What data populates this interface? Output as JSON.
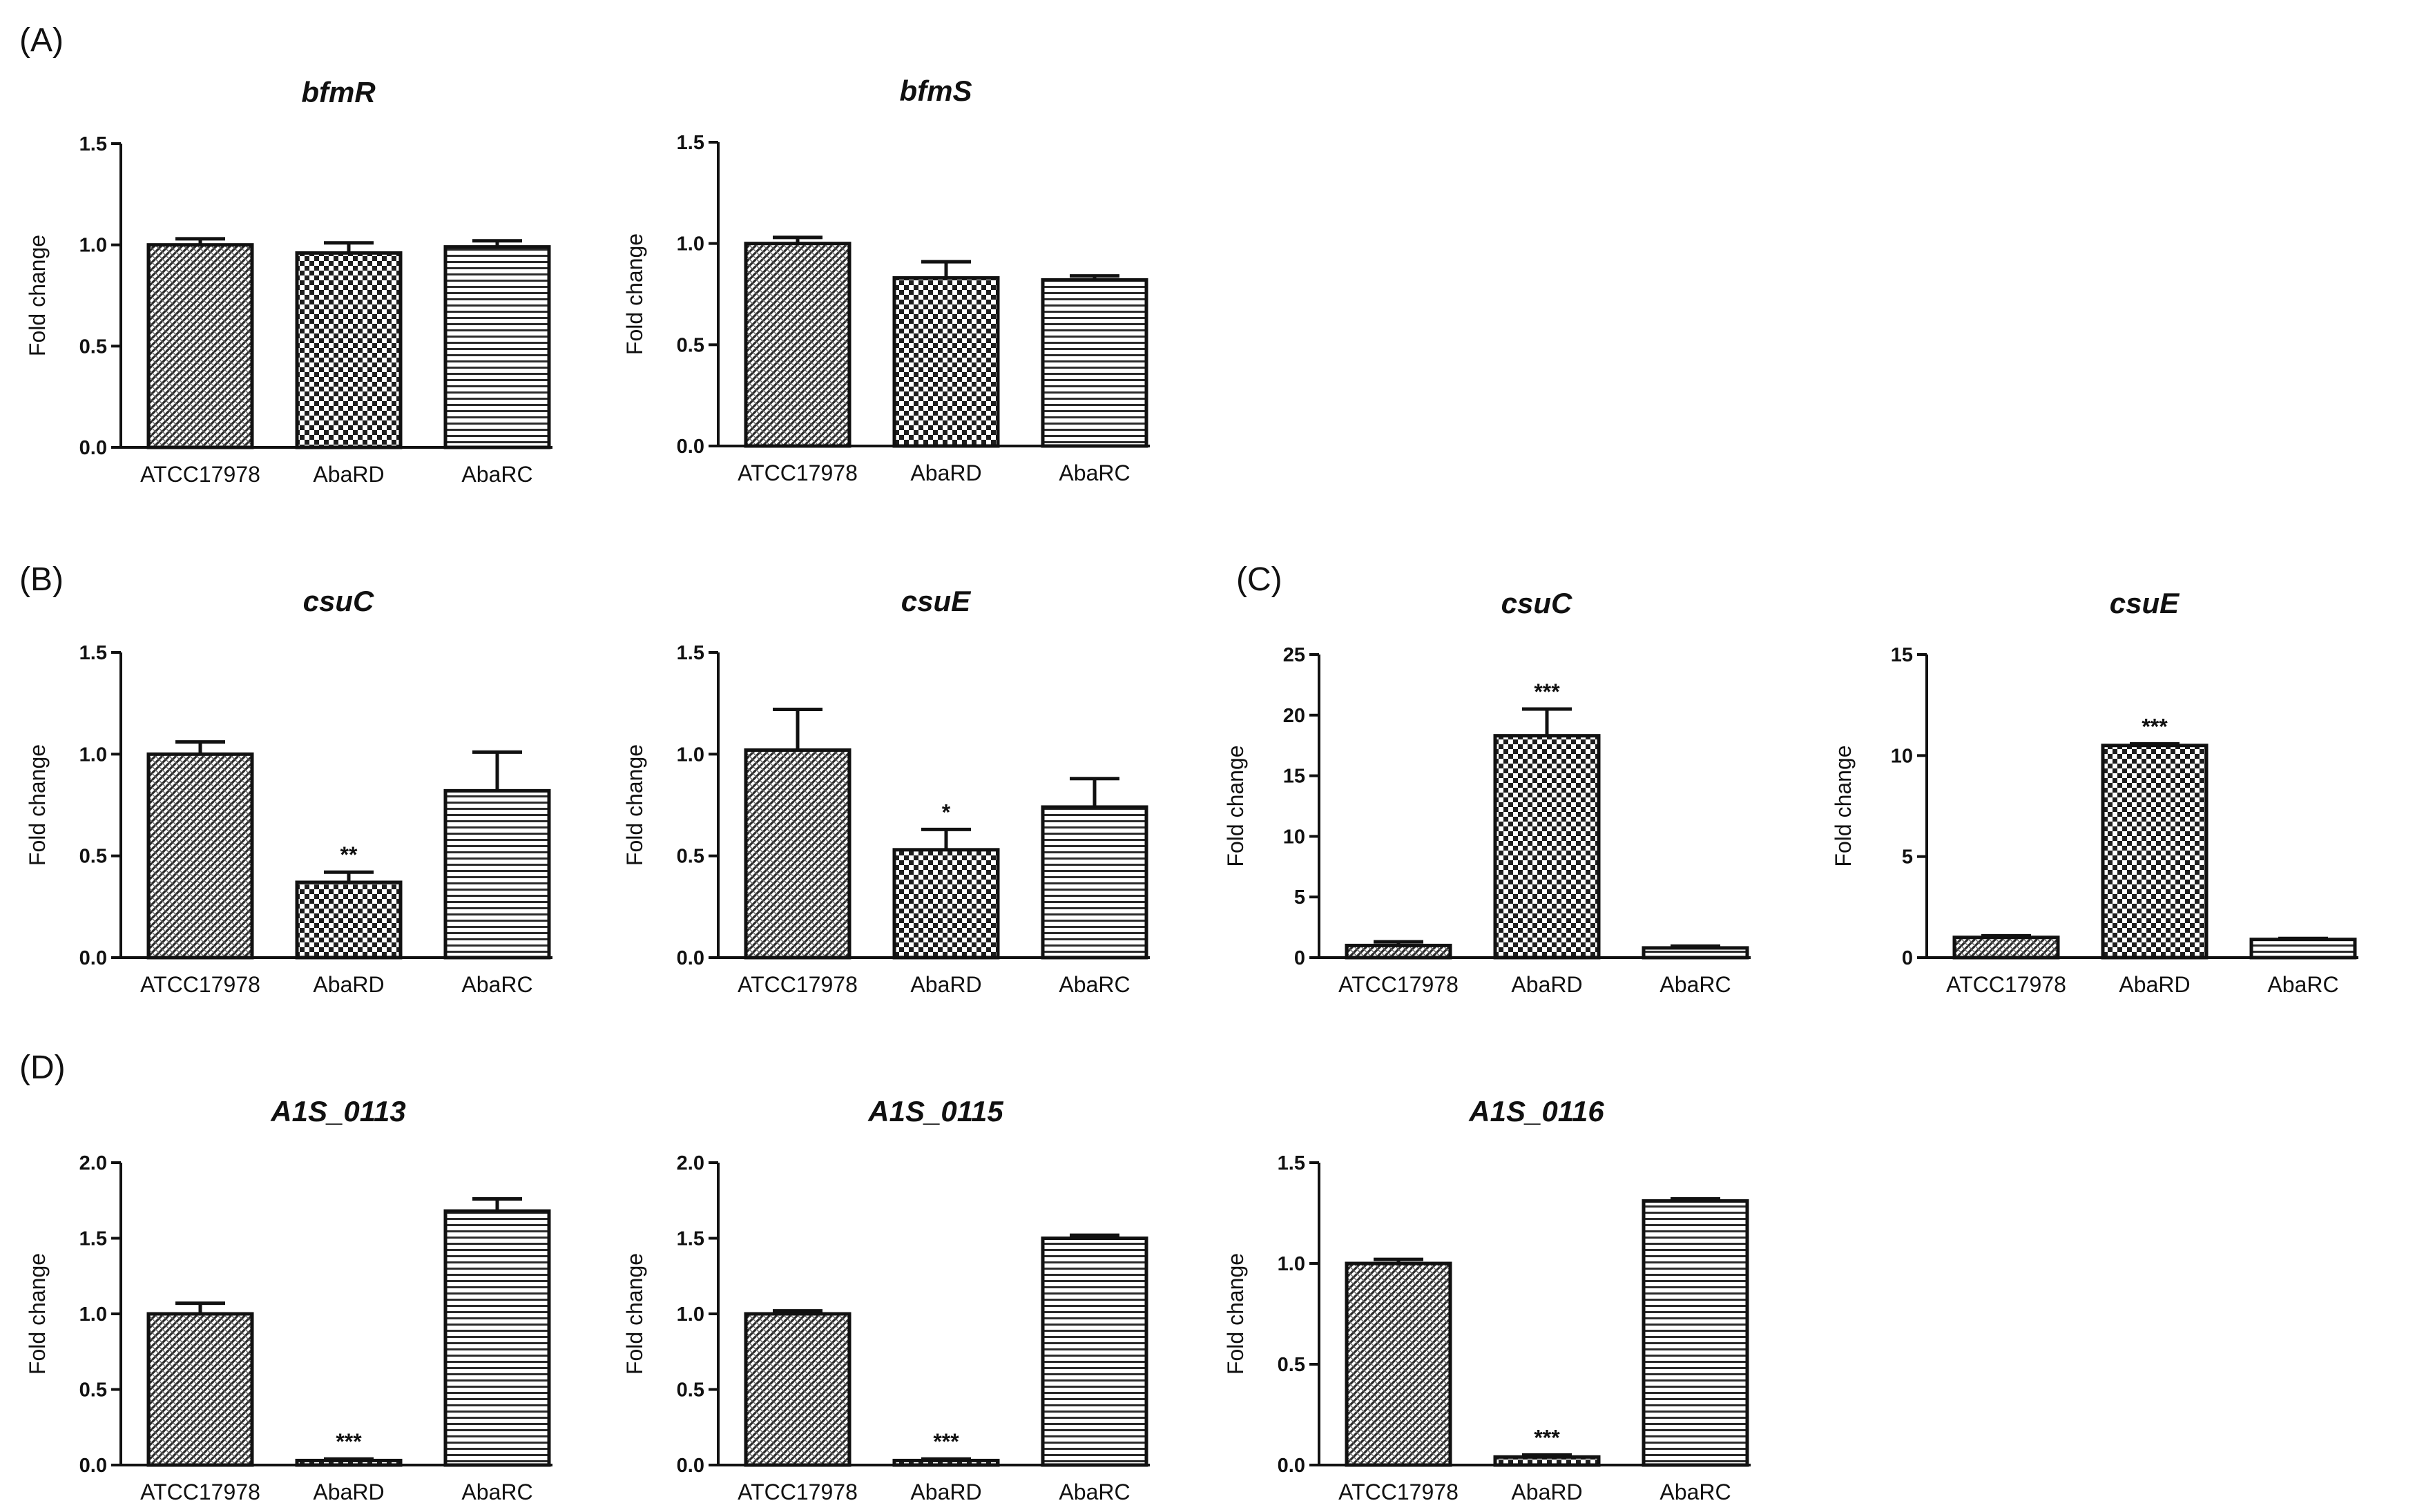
{
  "panel_labels": [
    "(A)",
    "(B)",
    "(C)",
    "(D)"
  ],
  "chart_data": [
    {
      "type": "bar",
      "panel": "(A)",
      "title": "bfmR",
      "ylabel": "Fold change",
      "ylim": [
        0,
        1.5
      ],
      "yticks": [
        "0.0",
        "0.5",
        "1.0",
        "1.5"
      ],
      "categories": [
        "ATCC17978",
        "AbaRD",
        "AbaRC"
      ],
      "values": [
        1.0,
        0.96,
        0.99
      ],
      "errors": [
        0.03,
        0.05,
        0.03
      ],
      "significance": [
        "",
        "",
        ""
      ],
      "patterns": [
        "diag",
        "check",
        "hlines"
      ]
    },
    {
      "type": "bar",
      "panel": "(A)",
      "title": "bfmS",
      "ylabel": "Fold change",
      "ylim": [
        0,
        1.5
      ],
      "yticks": [
        "0.0",
        "0.5",
        "1.0",
        "1.5"
      ],
      "categories": [
        "ATCC17978",
        "AbaRD",
        "AbaRC"
      ],
      "values": [
        1.0,
        0.83,
        0.82
      ],
      "errors": [
        0.03,
        0.08,
        0.02
      ],
      "significance": [
        "",
        "",
        ""
      ],
      "patterns": [
        "diag",
        "check",
        "hlines"
      ]
    },
    {
      "type": "bar",
      "panel": "(B)",
      "title": "csuC",
      "ylabel": "Fold change",
      "ylim": [
        0,
        1.5
      ],
      "yticks": [
        "0.0",
        "0.5",
        "1.0",
        "1.5"
      ],
      "categories": [
        "ATCC17978",
        "AbaRD",
        "AbaRC"
      ],
      "values": [
        1.0,
        0.37,
        0.82
      ],
      "errors": [
        0.06,
        0.05,
        0.19
      ],
      "significance": [
        "",
        "**",
        ""
      ],
      "patterns": [
        "diag",
        "check",
        "hlines"
      ]
    },
    {
      "type": "bar",
      "panel": "(B)",
      "title": "csuE",
      "ylabel": "Fold change",
      "ylim": [
        0,
        1.5
      ],
      "yticks": [
        "0.0",
        "0.5",
        "1.0",
        "1.5"
      ],
      "categories": [
        "ATCC17978",
        "AbaRD",
        "AbaRC"
      ],
      "values": [
        1.02,
        0.53,
        0.74
      ],
      "errors": [
        0.2,
        0.1,
        0.14
      ],
      "significance": [
        "",
        "*",
        ""
      ],
      "patterns": [
        "diag",
        "check",
        "hlines"
      ]
    },
    {
      "type": "bar",
      "panel": "(C)",
      "title": "csuC",
      "ylabel": "Fold change",
      "ylim": [
        0,
        25
      ],
      "yticks": [
        "0",
        "5",
        "10",
        "15",
        "20",
        "25"
      ],
      "categories": [
        "ATCC17978",
        "AbaRD",
        "AbaRC"
      ],
      "values": [
        1.0,
        18.3,
        0.8
      ],
      "errors": [
        0.3,
        2.2,
        0.15
      ],
      "significance": [
        "",
        "***",
        ""
      ],
      "patterns": [
        "diag",
        "check",
        "hlines"
      ]
    },
    {
      "type": "bar",
      "panel": "(C)",
      "title": "csuE",
      "ylabel": "Fold change",
      "ylim": [
        0,
        15
      ],
      "yticks": [
        "0",
        "5",
        "10",
        "15"
      ],
      "categories": [
        "ATCC17978",
        "AbaRD",
        "AbaRC"
      ],
      "values": [
        1.0,
        10.5,
        0.9
      ],
      "errors": [
        0.08,
        0.08,
        0.05
      ],
      "significance": [
        "",
        "***",
        ""
      ],
      "patterns": [
        "diag",
        "check",
        "hlines"
      ]
    },
    {
      "type": "bar",
      "panel": "(D)",
      "title": "A1S_0113",
      "ylabel": "Fold change",
      "ylim": [
        0,
        2.0
      ],
      "yticks": [
        "0.0",
        "0.5",
        "1.0",
        "1.5",
        "2.0"
      ],
      "categories": [
        "ATCC17978",
        "AbaRD",
        "AbaRC"
      ],
      "values": [
        1.0,
        0.03,
        1.68
      ],
      "errors": [
        0.07,
        0.01,
        0.08
      ],
      "significance": [
        "",
        "***",
        ""
      ],
      "patterns": [
        "diag",
        "check",
        "hlines"
      ]
    },
    {
      "type": "bar",
      "panel": "(D)",
      "title": "A1S_0115",
      "ylabel": "Fold change",
      "ylim": [
        0,
        2.0
      ],
      "yticks": [
        "0.0",
        "0.5",
        "1.0",
        "1.5",
        "2.0"
      ],
      "categories": [
        "ATCC17978",
        "AbaRD",
        "AbaRC"
      ],
      "values": [
        1.0,
        0.03,
        1.5
      ],
      "errors": [
        0.02,
        0.01,
        0.02
      ],
      "significance": [
        "",
        "***",
        ""
      ],
      "patterns": [
        "diag",
        "check",
        "hlines"
      ]
    },
    {
      "type": "bar",
      "panel": "(D)",
      "title": "A1S_0116",
      "ylabel": "Fold change",
      "ylim": [
        0,
        1.5
      ],
      "yticks": [
        "0.0",
        "0.5",
        "1.0",
        "1.5"
      ],
      "categories": [
        "ATCC17978",
        "AbaRD",
        "AbaRC"
      ],
      "values": [
        1.0,
        0.04,
        1.31
      ],
      "errors": [
        0.02,
        0.01,
        0.01
      ],
      "significance": [
        "",
        "***",
        ""
      ],
      "patterns": [
        "diag",
        "check",
        "hlines"
      ]
    }
  ]
}
